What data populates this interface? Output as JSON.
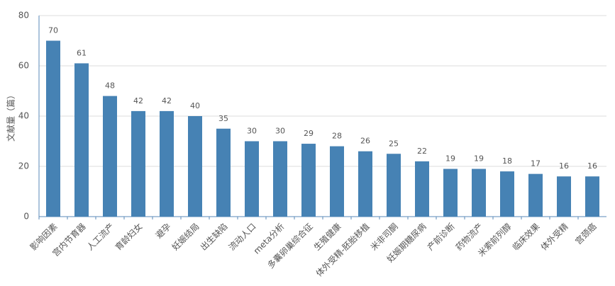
{
  "chart_data": {
    "type": "bar",
    "y_label": "文献量（篇）",
    "categories": [
      "影响因素",
      "宫内节育器",
      "人工流产",
      "育龄妇女",
      "避孕",
      "妊娠结局",
      "出生缺陷",
      "流动人口",
      "meta分析",
      "多囊卵巢综合征",
      "生殖健康",
      "体外受精-胚胎移植",
      "米非司酮",
      "妊娠期糖尿病",
      "产前诊断",
      "药物流产",
      "米索前列醇",
      "临床效果",
      "体外受精",
      "宫颈癌"
    ],
    "values": [
      70,
      61,
      48,
      42,
      42,
      40,
      35,
      30,
      30,
      29,
      28,
      26,
      25,
      22,
      19,
      19,
      18,
      17,
      16,
      16
    ],
    "color": "#4682b4",
    "ylim": [
      0,
      80
    ],
    "yticks": [
      0,
      20,
      40,
      60,
      80
    ],
    "grid": true
  }
}
